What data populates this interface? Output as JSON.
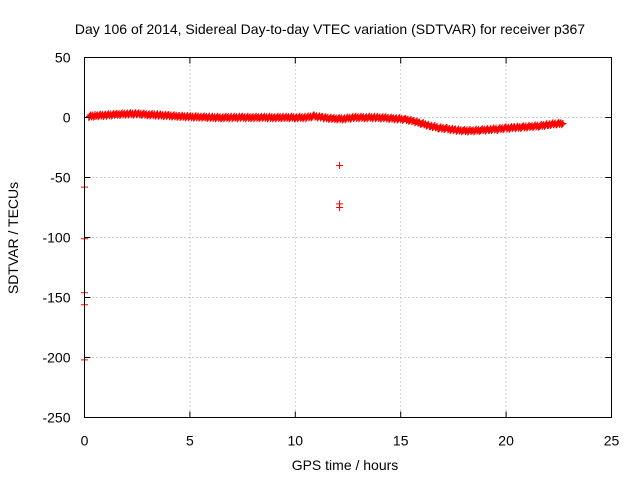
{
  "chart_data": {
    "type": "scatter",
    "title": "Day 106 of 2014, Sidereal Day-to-day VTEC variation (SDTVAR) for receiver p367",
    "xlabel": "GPS time / hours",
    "ylabel": "SDTVAR / TECUs",
    "xlim": [
      0,
      25
    ],
    "ylim": [
      -250,
      50
    ],
    "xticks": [
      0,
      5,
      10,
      15,
      20,
      25
    ],
    "yticks": [
      50,
      0,
      -50,
      -100,
      -150,
      -200,
      -250
    ],
    "grid": true,
    "marker": "+",
    "color": "#ff0000",
    "series": [
      {
        "name": "SDTVAR",
        "trend": {
          "x": [
            0.2,
            0.5,
            1.0,
            1.5,
            2.0,
            2.5,
            3.0,
            3.5,
            4.0,
            4.5,
            5.0,
            5.5,
            6.0,
            6.5,
            7.0,
            7.5,
            8.0,
            8.5,
            9.0,
            9.5,
            10.0,
            10.5,
            10.9,
            11.3,
            11.8,
            12.3,
            12.8,
            13.3,
            13.8,
            14.3,
            14.8,
            15.2,
            15.6,
            16.0,
            16.4,
            16.8,
            17.2,
            17.6,
            18.0,
            18.4,
            18.8,
            19.2,
            19.6,
            20.0,
            20.4,
            20.8,
            21.2,
            21.6,
            22.0,
            22.4,
            22.7
          ],
          "y": [
            1,
            1.5,
            2,
            2.5,
            3,
            3,
            2.5,
            2,
            1.5,
            1,
            0.5,
            0.5,
            0,
            0,
            0,
            0,
            0,
            0,
            0,
            0,
            0,
            0,
            1,
            0,
            -1,
            -1,
            0,
            0,
            0,
            -0.5,
            -1,
            -1.5,
            -3,
            -5,
            -7,
            -8.5,
            -9.5,
            -10.5,
            -11,
            -11,
            -10.5,
            -10,
            -9.5,
            -9,
            -8.5,
            -8,
            -7.5,
            -7,
            -6,
            -5,
            -5
          ]
        },
        "outliers": {
          "x": [
            12.1,
            12.1,
            12.1,
            0,
            0,
            0,
            0,
            0
          ],
          "y": [
            -40,
            -72,
            -75,
            -58,
            -101,
            -146,
            -156,
            -202
          ]
        }
      }
    ]
  }
}
